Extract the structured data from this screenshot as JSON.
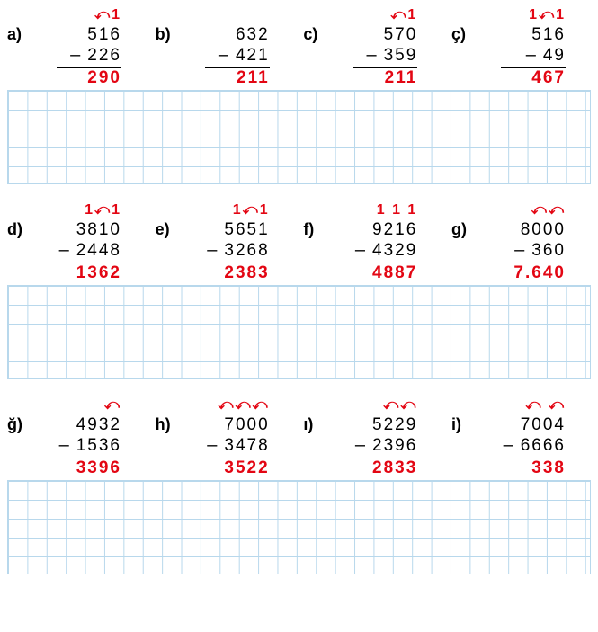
{
  "sections": [
    {
      "problems": [
        {
          "label": "a)",
          "borrow": "⤺1  ",
          "minuend": "516",
          "subtrahend": "226",
          "result": "290",
          "wide": false
        },
        {
          "label": "b)",
          "borrow": "",
          "minuend": "632",
          "subtrahend": "421",
          "result": "211",
          "wide": false
        },
        {
          "label": "c)",
          "borrow": "⤺1",
          "minuend": "570",
          "subtrahend": "359",
          "result": "211",
          "wide": false
        },
        {
          "label": "ç)",
          "borrow": "1⤺1",
          "minuend": "516",
          "subtrahend": "49",
          "result": "467",
          "wide": false
        }
      ]
    },
    {
      "problems": [
        {
          "label": "d)",
          "borrow": "1⤺1  ",
          "minuend": "3810",
          "subtrahend": "2448",
          "result": "1362",
          "wide": true
        },
        {
          "label": "e)",
          "borrow": "1⤺1",
          "minuend": "5651",
          "subtrahend": "3268",
          "result": "2383",
          "wide": true
        },
        {
          "label": "f)",
          "borrow": "1 1 1",
          "minuend": "9216",
          "subtrahend": "4329",
          "result": "4887",
          "wide": true
        },
        {
          "label": "g)",
          "borrow": "⤺⤺  ",
          "minuend": "8000",
          "subtrahend": "360",
          "result": "7.640",
          "wide": true
        }
      ]
    },
    {
      "problems": [
        {
          "label": "ğ)",
          "borrow": "⤺  ",
          "minuend": "4932",
          "subtrahend": "1536",
          "result": "3396",
          "wide": true
        },
        {
          "label": "h)",
          "borrow": "⤺⤺⤺",
          "minuend": "7000",
          "subtrahend": "3478",
          "result": "3522",
          "wide": true
        },
        {
          "label": "ı)",
          "borrow": "⤺⤺  ",
          "minuend": "5229",
          "subtrahend": "2396",
          "result": "2833",
          "wide": true
        },
        {
          "label": "i)",
          "borrow": "⤺ ⤺",
          "minuend": "7004",
          "subtrahend": "6666",
          "result": "338",
          "wide": true
        }
      ]
    }
  ]
}
